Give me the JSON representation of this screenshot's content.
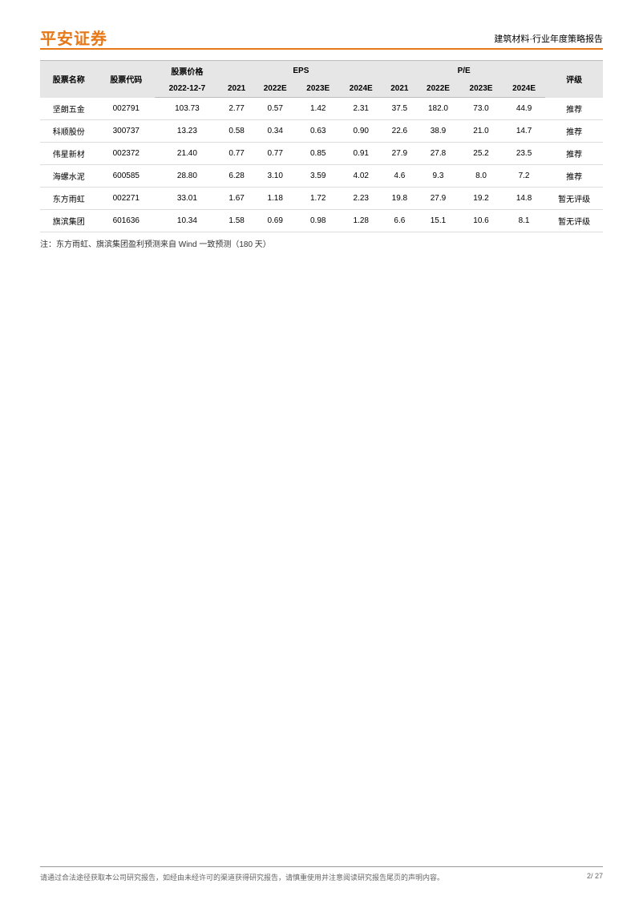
{
  "header": {
    "company": "平安证券",
    "doc_title": "建筑材料·行业年度策略报告"
  },
  "table": {
    "columns_group1": {
      "stock_name": "股票名称",
      "stock_code": "股票代码",
      "price": "股票价格",
      "eps": "EPS",
      "pe": "P/E",
      "rating": "评级"
    },
    "columns_group2": {
      "price_date": "2022-12-7",
      "y2021": "2021",
      "y2022e": "2022E",
      "y2023e": "2023E",
      "y2024e": "2024E",
      "pe2021": "2021",
      "pe2022e": "2022E",
      "pe2023e": "2023E",
      "pe2024e": "2024E"
    },
    "rows": [
      {
        "name": "坚朗五金",
        "code": "002791",
        "price": "103.73",
        "e21": "2.77",
        "e22": "0.57",
        "e23": "1.42",
        "e24": "2.31",
        "p21": "37.5",
        "p22": "182.0",
        "p23": "73.0",
        "p24": "44.9",
        "rating": "推荐"
      },
      {
        "name": "科顺股份",
        "code": "300737",
        "price": "13.23",
        "e21": "0.58",
        "e22": "0.34",
        "e23": "0.63",
        "e24": "0.90",
        "p21": "22.6",
        "p22": "38.9",
        "p23": "21.0",
        "p24": "14.7",
        "rating": "推荐"
      },
      {
        "name": "伟星新材",
        "code": "002372",
        "price": "21.40",
        "e21": "0.77",
        "e22": "0.77",
        "e23": "0.85",
        "e24": "0.91",
        "p21": "27.9",
        "p22": "27.8",
        "p23": "25.2",
        "p24": "23.5",
        "rating": "推荐"
      },
      {
        "name": "海螺水泥",
        "code": "600585",
        "price": "28.80",
        "e21": "6.28",
        "e22": "3.10",
        "e23": "3.59",
        "e24": "4.02",
        "p21": "4.6",
        "p22": "9.3",
        "p23": "8.0",
        "p24": "7.2",
        "rating": "推荐"
      },
      {
        "name": "东方雨虹",
        "code": "002271",
        "price": "33.01",
        "e21": "1.67",
        "e22": "1.18",
        "e23": "1.72",
        "e24": "2.23",
        "p21": "19.8",
        "p22": "27.9",
        "p23": "19.2",
        "p24": "14.8",
        "rating": "暂无评级"
      },
      {
        "name": "旗滨集团",
        "code": "601636",
        "price": "10.34",
        "e21": "1.58",
        "e22": "0.69",
        "e23": "0.98",
        "e24": "1.28",
        "p21": "6.6",
        "p22": "15.1",
        "p23": "10.6",
        "p24": "8.1",
        "rating": "暂无评级"
      }
    ]
  },
  "note": "注：东方雨虹、旗滨集团盈利预测来自 Wind 一致预测（180 天）",
  "footer": {
    "text": "请通过合法途径获取本公司研究报告，如经由未经许可的渠道获得研究报告，请慎重使用并注意阅读研究报告尾页的声明内容。",
    "page": "2/ 27"
  },
  "colors": {
    "accent": "#e67817",
    "header_bg": "#e6e6e6",
    "border": "#bbb",
    "row_border": "#ddd"
  }
}
